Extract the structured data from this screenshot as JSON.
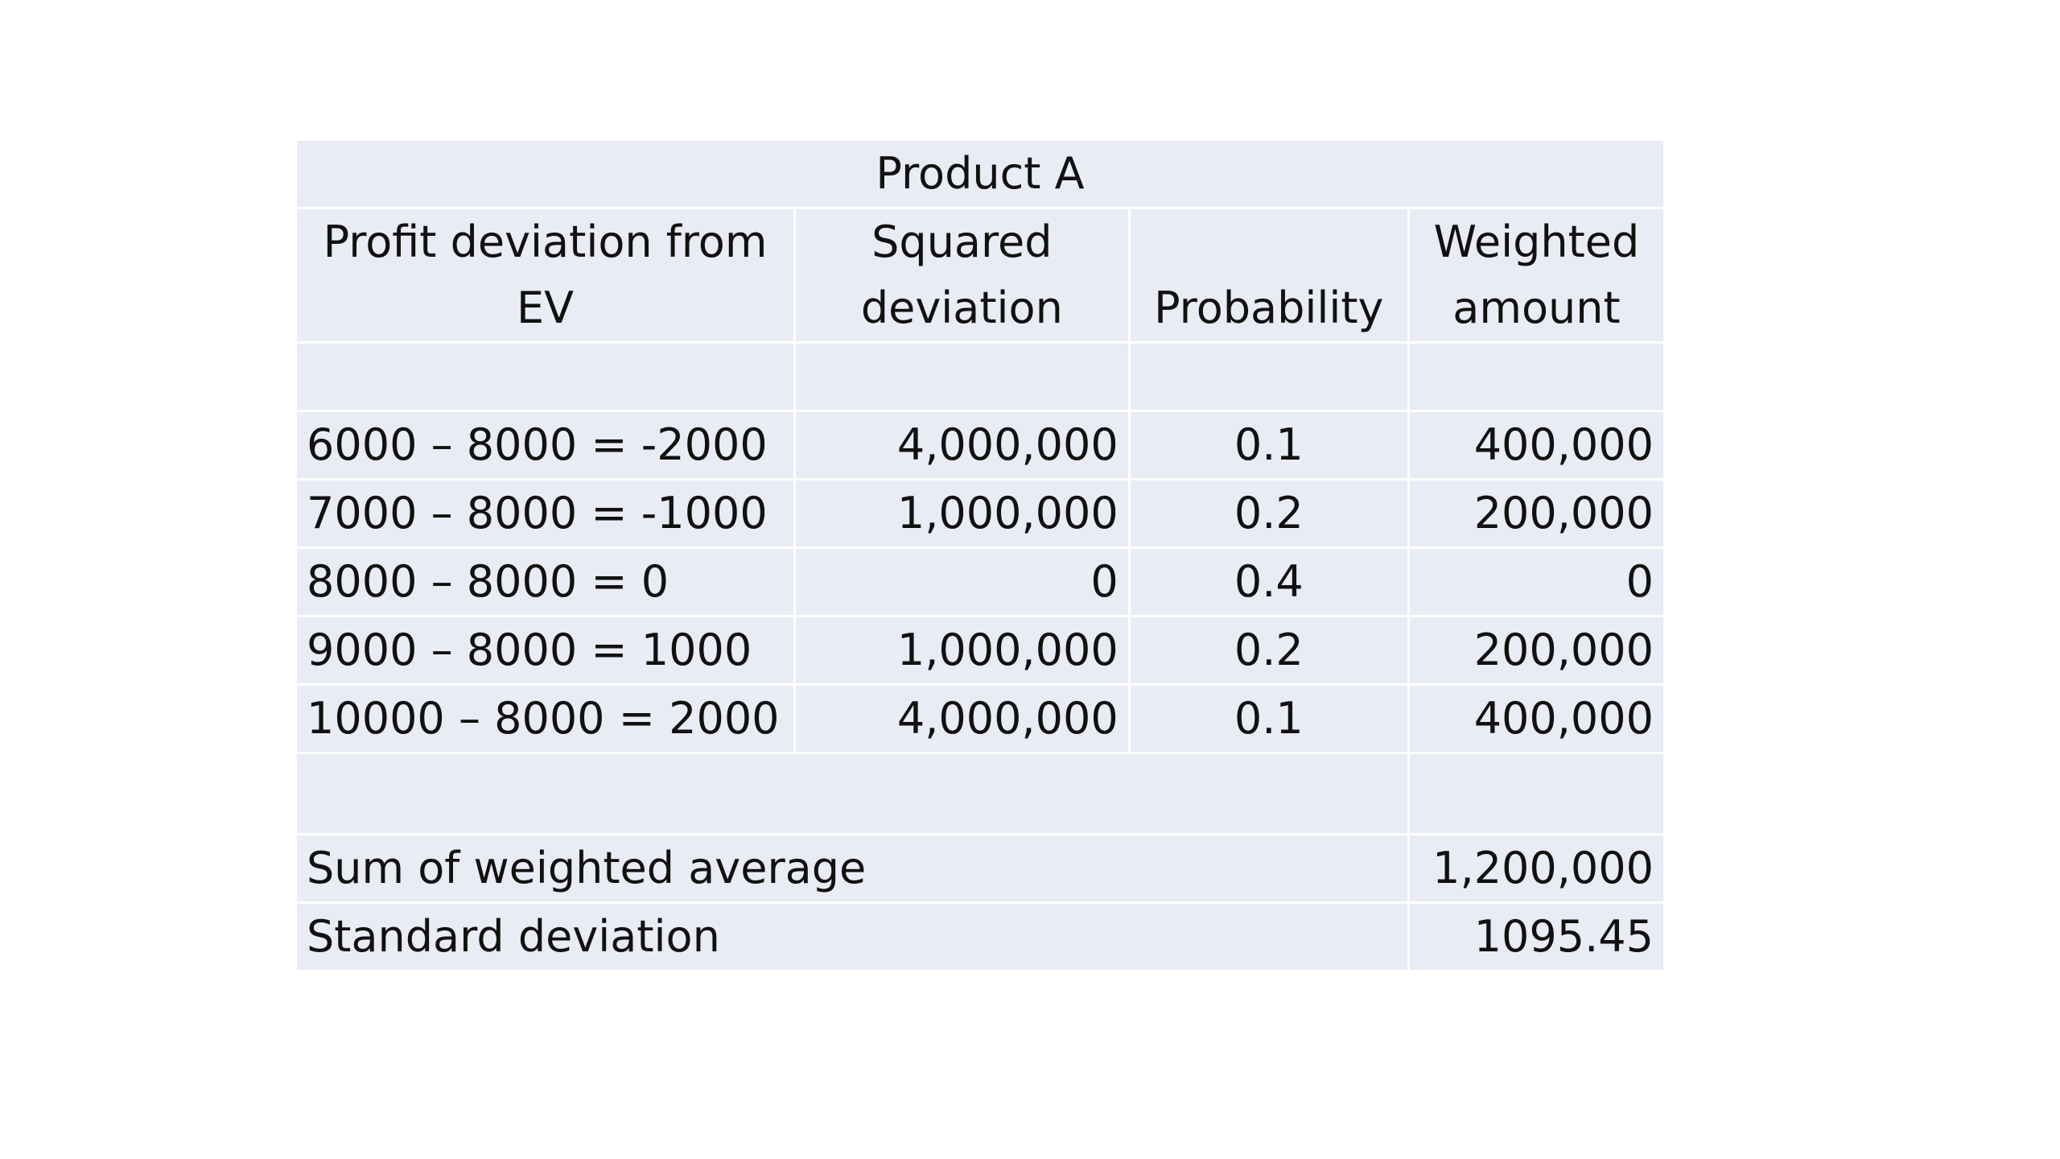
{
  "table": {
    "title": "Product A",
    "headers": {
      "deviation": [
        "Profit deviation from",
        "EV"
      ],
      "squared": [
        "Squared",
        "deviation"
      ],
      "probability": "Probability",
      "weighted": [
        "Weighted",
        "amount"
      ]
    },
    "rows": [
      {
        "deviation": "6000 – 8000 = -2000",
        "squared": "4,000,000",
        "probability": "0.1",
        "weighted": "400,000"
      },
      {
        "deviation": "7000 – 8000 = -1000",
        "squared": "1,000,000",
        "probability": "0.2",
        "weighted": "200,000"
      },
      {
        "deviation": "8000 – 8000 = 0",
        "squared": "0",
        "probability": "0.4",
        "weighted": "0"
      },
      {
        "deviation": "9000 – 8000 = 1000",
        "squared": "1,000,000",
        "probability": "0.2",
        "weighted": "200,000"
      },
      {
        "deviation": "10000 – 8000 = 2000",
        "squared": "4,000,000",
        "probability": "0.1",
        "weighted": "400,000"
      }
    ],
    "summary": {
      "sum_label": "Sum of weighted average",
      "sum_value": "1,200,000",
      "sd_label": "Standard deviation",
      "sd_value": "1095.45"
    }
  }
}
